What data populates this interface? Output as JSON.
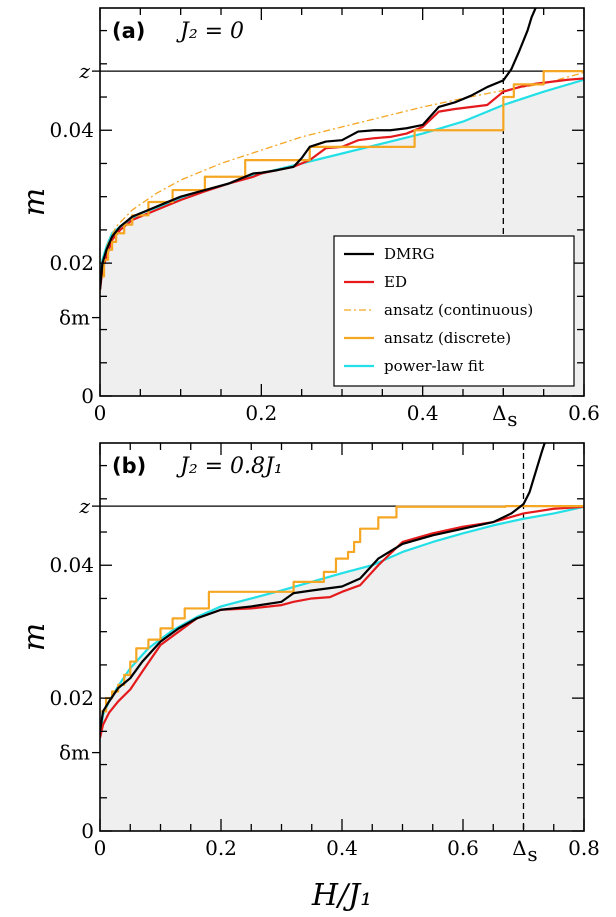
{
  "chart_data": [
    {
      "panel": "(a)",
      "equation": "J₂ = 0",
      "type": "line",
      "xlim": [
        0,
        0.6
      ],
      "ylim": [
        0,
        0.0584
      ],
      "xticks": [
        {
          "v": 0,
          "label": "0"
        },
        {
          "v": 0.2,
          "label": "0.2"
        },
        {
          "v": 0.4,
          "label": "0.4"
        },
        {
          "v": 0.6,
          "label": "0.6"
        }
      ],
      "xtick_extra": {
        "v": 0.5,
        "label": "Δ",
        "sub": "s"
      },
      "yticks": [
        {
          "v": 0,
          "label": "0"
        },
        {
          "v": 0.02,
          "label": "0.02"
        },
        {
          "v": 0.04,
          "label": "0.04"
        }
      ],
      "ytick_extra": [
        {
          "v": 0.0489,
          "label": "z"
        },
        {
          "v": 0.0118,
          "label": "δm"
        }
      ],
      "hline": 0.0489,
      "vline": 0.5,
      "series": [
        {
          "name": "DMRG",
          "color": "#000000",
          "style": "solid",
          "x": [
            0,
            0.003,
            0.008,
            0.015,
            0.025,
            0.04,
            0.06,
            0.08,
            0.1,
            0.13,
            0.16,
            0.19,
            0.2,
            0.22,
            0.24,
            0.25,
            0.26,
            0.28,
            0.3,
            0.32,
            0.34,
            0.36,
            0.38,
            0.4,
            0.42,
            0.44,
            0.46,
            0.48,
            0.5,
            0.51,
            0.52,
            0.53,
            0.535,
            0.54
          ],
          "y": [
            0.016,
            0.02,
            0.022,
            0.024,
            0.0255,
            0.027,
            0.028,
            0.029,
            0.03,
            0.031,
            0.032,
            0.0335,
            0.0336,
            0.034,
            0.0345,
            0.0358,
            0.0375,
            0.0383,
            0.0385,
            0.0398,
            0.04,
            0.04,
            0.0403,
            0.0408,
            0.0435,
            0.0442,
            0.0452,
            0.0465,
            0.0475,
            0.0492,
            0.052,
            0.055,
            0.057,
            0.0584
          ]
        },
        {
          "name": "ED",
          "color": "#e41a1c",
          "style": "solid",
          "x": [
            0,
            0.003,
            0.008,
            0.015,
            0.025,
            0.04,
            0.06,
            0.08,
            0.1,
            0.13,
            0.16,
            0.19,
            0.2,
            0.22,
            0.24,
            0.26,
            0.28,
            0.3,
            0.32,
            0.34,
            0.36,
            0.38,
            0.4,
            0.42,
            0.44,
            0.46,
            0.48,
            0.5,
            0.52,
            0.54,
            0.56,
            0.58,
            0.6
          ],
          "y": [
            0.016,
            0.019,
            0.021,
            0.0235,
            0.025,
            0.0265,
            0.0275,
            0.0285,
            0.0295,
            0.0308,
            0.032,
            0.033,
            0.0335,
            0.034,
            0.0345,
            0.0355,
            0.0373,
            0.0375,
            0.0385,
            0.0388,
            0.039,
            0.0395,
            0.0405,
            0.0428,
            0.0432,
            0.0435,
            0.0438,
            0.0458,
            0.0465,
            0.047,
            0.0473,
            0.0476,
            0.0478
          ]
        },
        {
          "name": "ansatz (continuous)",
          "color": "#f5a623",
          "style": "dashdot",
          "x": [
            0,
            0.005,
            0.01,
            0.02,
            0.04,
            0.07,
            0.1,
            0.15,
            0.2,
            0.25,
            0.3,
            0.35,
            0.4,
            0.45,
            0.5,
            0.55,
            0.6
          ],
          "y": [
            0.0155,
            0.021,
            0.023,
            0.0255,
            0.028,
            0.0305,
            0.0325,
            0.035,
            0.037,
            0.039,
            0.0405,
            0.042,
            0.0435,
            0.0448,
            0.046,
            0.047,
            0.0487
          ]
        },
        {
          "name": "ansatz (discrete)",
          "color": "#f5a623",
          "style": "step",
          "x": [
            0.002,
            0.005,
            0.01,
            0.015,
            0.02,
            0.03,
            0.04,
            0.06,
            0.09,
            0.13,
            0.18,
            0.26,
            0.39,
            0.5,
            0.513,
            0.55
          ],
          "y": [
            0.018,
            0.0205,
            0.022,
            0.0232,
            0.0245,
            0.0258,
            0.0272,
            0.0292,
            0.031,
            0.033,
            0.0355,
            0.0375,
            0.04,
            0.045,
            0.0469,
            0.0489
          ]
        },
        {
          "name": "power-law fit",
          "color": "#22e0e6",
          "style": "solid",
          "x": [
            0,
            0.003,
            0.008,
            0.015,
            0.03,
            0.05,
            0.08,
            0.12,
            0.16,
            0.2,
            0.25,
            0.3,
            0.35,
            0.4,
            0.45,
            0.5,
            0.55,
            0.6
          ],
          "y": [
            0.017,
            0.0205,
            0.0225,
            0.0245,
            0.026,
            0.0275,
            0.0288,
            0.0305,
            0.032,
            0.0335,
            0.035,
            0.0365,
            0.038,
            0.0395,
            0.0413,
            0.0438,
            0.0458,
            0.0476
          ]
        }
      ],
      "legend": {
        "placement": "lower-right"
      }
    },
    {
      "panel": "(b)",
      "equation": "J₂ = 0.8J₁",
      "type": "line",
      "xlim": [
        0,
        0.8
      ],
      "ylim": [
        0,
        0.0584
      ],
      "xticks": [
        {
          "v": 0,
          "label": "0"
        },
        {
          "v": 0.2,
          "label": "0.2"
        },
        {
          "v": 0.4,
          "label": "0.4"
        },
        {
          "v": 0.6,
          "label": "0.6"
        },
        {
          "v": 0.8,
          "label": "0.8"
        }
      ],
      "xtick_extra": {
        "v": 0.7,
        "label": "Δ",
        "sub": "s"
      },
      "yticks": [
        {
          "v": 0,
          "label": "0"
        },
        {
          "v": 0.02,
          "label": "0.02"
        },
        {
          "v": 0.04,
          "label": "0.04"
        }
      ],
      "ytick_extra": [
        {
          "v": 0.0489,
          "label": "z"
        },
        {
          "v": 0.0118,
          "label": "δm"
        }
      ],
      "hline": 0.0489,
      "vline": 0.7,
      "xlabel": "H/J₁",
      "series": [
        {
          "name": "DMRG",
          "color": "#000000",
          "style": "solid",
          "x": [
            0,
            0.005,
            0.015,
            0.03,
            0.05,
            0.07,
            0.1,
            0.13,
            0.16,
            0.2,
            0.25,
            0.3,
            0.32,
            0.35,
            0.4,
            0.43,
            0.46,
            0.5,
            0.55,
            0.6,
            0.65,
            0.68,
            0.7,
            0.71,
            0.72,
            0.73,
            0.735
          ],
          "y": [
            0.015,
            0.018,
            0.0195,
            0.0215,
            0.023,
            0.0255,
            0.0285,
            0.0305,
            0.032,
            0.0333,
            0.0338,
            0.0345,
            0.0358,
            0.0362,
            0.0368,
            0.038,
            0.041,
            0.0432,
            0.0445,
            0.0455,
            0.0465,
            0.0478,
            0.0492,
            0.051,
            0.054,
            0.057,
            0.0584
          ]
        },
        {
          "name": "ED",
          "color": "#e41a1c",
          "style": "solid",
          "x": [
            0,
            0.005,
            0.015,
            0.03,
            0.05,
            0.07,
            0.1,
            0.13,
            0.16,
            0.2,
            0.25,
            0.3,
            0.32,
            0.35,
            0.38,
            0.4,
            0.43,
            0.46,
            0.5,
            0.55,
            0.6,
            0.65,
            0.7,
            0.75,
            0.8
          ],
          "y": [
            0.014,
            0.016,
            0.0178,
            0.0195,
            0.0213,
            0.024,
            0.028,
            0.03,
            0.032,
            0.0333,
            0.0335,
            0.034,
            0.0345,
            0.035,
            0.0352,
            0.036,
            0.037,
            0.04,
            0.0435,
            0.0448,
            0.0458,
            0.0465,
            0.0478,
            0.0485,
            0.0488
          ]
        },
        {
          "name": "ansatz (discrete)",
          "color": "#f5a623",
          "style": "step",
          "x": [
            0.002,
            0.01,
            0.02,
            0.03,
            0.04,
            0.05,
            0.06,
            0.08,
            0.1,
            0.12,
            0.14,
            0.18,
            0.32,
            0.37,
            0.39,
            0.41,
            0.42,
            0.43,
            0.46,
            0.49,
            0.67,
            0.8
          ],
          "y": [
            0.018,
            0.02,
            0.021,
            0.022,
            0.0235,
            0.0255,
            0.0275,
            0.0288,
            0.0305,
            0.032,
            0.0335,
            0.036,
            0.0375,
            0.039,
            0.041,
            0.042,
            0.0435,
            0.0455,
            0.0472,
            0.0488,
            0.0489,
            0.0489
          ]
        },
        {
          "name": "power-law fit",
          "color": "#22e0e6",
          "style": "solid",
          "x": [
            0,
            0.005,
            0.015,
            0.03,
            0.05,
            0.08,
            0.12,
            0.16,
            0.2,
            0.25,
            0.3,
            0.35,
            0.4,
            0.45,
            0.5,
            0.55,
            0.6,
            0.65,
            0.7,
            0.75,
            0.8
          ],
          "y": [
            0.0145,
            0.0175,
            0.0195,
            0.0218,
            0.0245,
            0.0275,
            0.0302,
            0.0322,
            0.0338,
            0.035,
            0.0362,
            0.0375,
            0.0388,
            0.04,
            0.042,
            0.0435,
            0.0448,
            0.046,
            0.047,
            0.0478,
            0.0488
          ]
        }
      ]
    }
  ],
  "ylabel": "m",
  "legend_entries": [
    {
      "label": "DMRG",
      "color": "#000000",
      "style": "solid"
    },
    {
      "label": "ED",
      "color": "#e41a1c",
      "style": "solid"
    },
    {
      "label": "ansatz (continuous)",
      "color": "#f5a623",
      "style": "dashdot"
    },
    {
      "label": "ansatz (discrete)",
      "color": "#f5a623",
      "style": "solid"
    },
    {
      "label": "power-law fit",
      "color": "#22e0e6",
      "style": "solid"
    }
  ],
  "shade_color": "#efefef"
}
